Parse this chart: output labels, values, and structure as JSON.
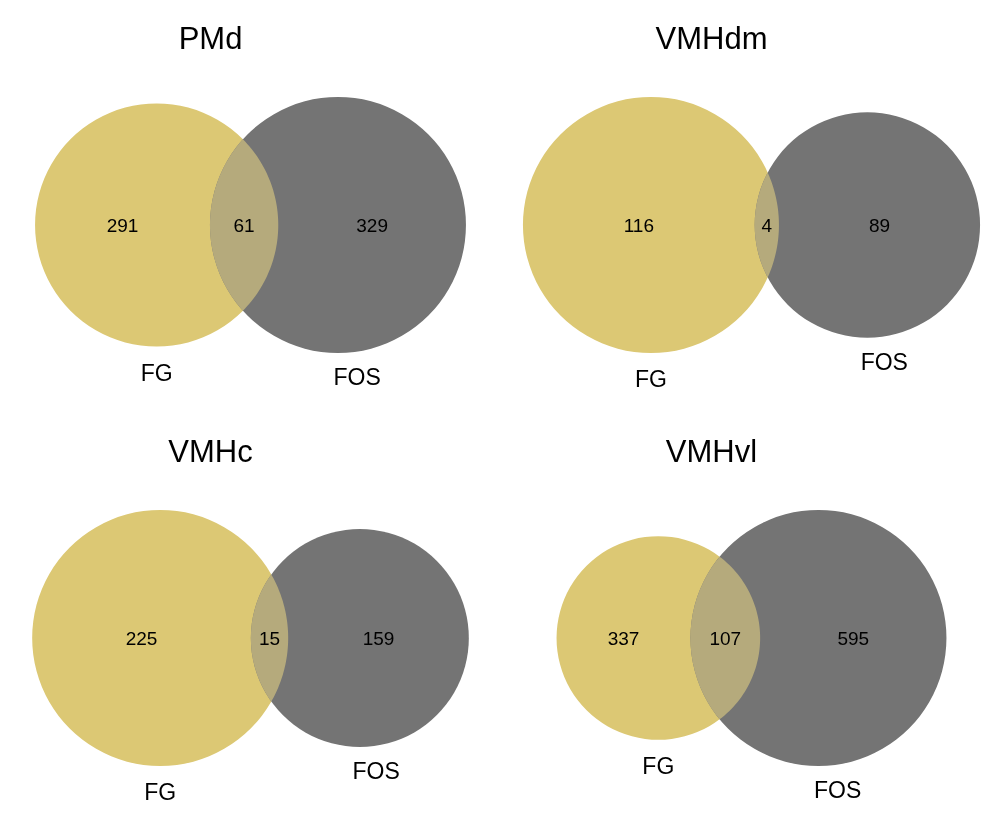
{
  "chart_data": [
    {
      "type": "other",
      "title": "PMd",
      "categories": [
        "FG",
        null,
        "FOS"
      ],
      "values": [
        291,
        61,
        329
      ],
      "colors": [
        "#dcc874",
        "#b5aa7c",
        "#747474"
      ],
      "data_labels": true
    },
    {
      "type": "other",
      "title": "VMHdm",
      "categories": [
        "FG",
        null,
        "FOS"
      ],
      "values": [
        116,
        4,
        89
      ],
      "colors": [
        "#dcc874",
        "#b5aa7c",
        "#747474"
      ],
      "data_labels": true
    },
    {
      "type": "other",
      "title": "VMHc",
      "categories": [
        "FG",
        null,
        "FOS"
      ],
      "values": [
        225,
        15,
        159
      ],
      "colors": [
        "#dcc874",
        "#b5aa7c",
        "#747474"
      ],
      "data_labels": true
    },
    {
      "type": "other",
      "title": "VMHvl",
      "categories": [
        "FG",
        null,
        "FOS"
      ],
      "values": [
        337,
        107,
        595
      ],
      "colors": [
        "#dcc874",
        "#b5aa7c",
        "#747474"
      ],
      "data_labels": true
    }
  ]
}
